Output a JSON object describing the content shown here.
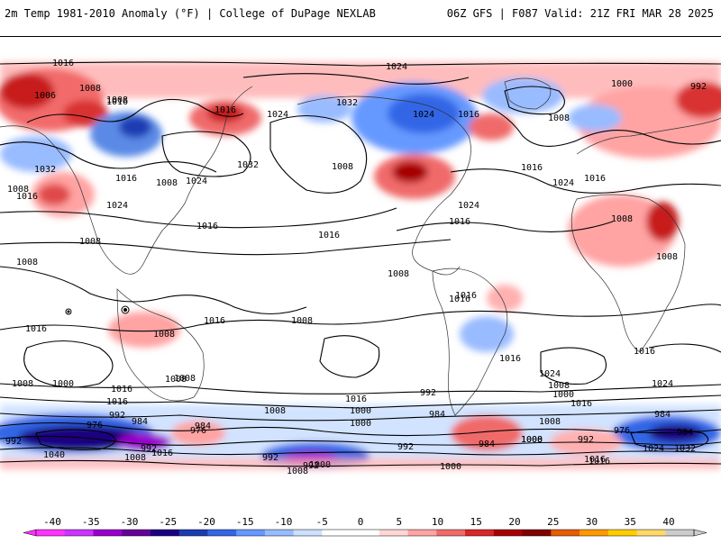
{
  "header": {
    "title_left": "2m Temp 1981-2010 Anomaly (°F) | College of DuPage NEXLAB",
    "title_right": "06Z GFS | F087 Valid: 21Z FRI MAR 28 2025"
  },
  "colorbar": {
    "ticks": [
      "-40",
      "-35",
      "-30",
      "-25",
      "-20",
      "-15",
      "-10",
      "-5",
      "0",
      "5",
      "10",
      "15",
      "20",
      "25",
      "30",
      "35",
      "40"
    ],
    "colors": [
      "#ff33ff",
      "#cc33ff",
      "#9900cc",
      "#660099",
      "#1a0080",
      "#1a3cb3",
      "#3366e6",
      "#6699ff",
      "#99bbff",
      "#cce0ff",
      "#ffffff",
      "#ffffff",
      "#ffd6d6",
      "#ffa3a3",
      "#f06a6a",
      "#d92626",
      "#a80000",
      "#800000",
      "#e65c00",
      "#ff9900",
      "#ffcc00",
      "#ffd966",
      "#cccccc"
    ]
  },
  "isobars": [
    {
      "text": "1016"
    },
    {
      "text": "1024"
    },
    {
      "text": "1008"
    },
    {
      "text": "992"
    },
    {
      "text": "1006"
    },
    {
      "text": "1016"
    },
    {
      "text": "1008"
    },
    {
      "text": "1016"
    },
    {
      "text": "1024"
    },
    {
      "text": "1032"
    },
    {
      "text": "1016"
    },
    {
      "text": "1024"
    },
    {
      "text": "1008"
    },
    {
      "text": "1000"
    },
    {
      "text": "1008"
    },
    {
      "text": "1032"
    },
    {
      "text": "1016"
    },
    {
      "text": "1008"
    },
    {
      "text": "1008"
    },
    {
      "text": "1024"
    },
    {
      "text": "1016"
    },
    {
      "text": "1024"
    },
    {
      "text": "1032"
    },
    {
      "text": "1016"
    },
    {
      "text": "1024"
    },
    {
      "text": "1016"
    },
    {
      "text": "1008"
    },
    {
      "text": "1016"
    },
    {
      "text": "1024"
    },
    {
      "text": "1008"
    },
    {
      "text": "1016"
    },
    {
      "text": "1016"
    },
    {
      "text": "1008"
    },
    {
      "text": "1008"
    },
    {
      "text": "1008"
    },
    {
      "text": "1016"
    },
    {
      "text": "1016"
    },
    {
      "text": "1008"
    },
    {
      "text": "1016"
    },
    {
      "text": "1016"
    },
    {
      "text": "1008"
    },
    {
      "text": "1008"
    },
    {
      "text": "1016"
    },
    {
      "text": "1024"
    },
    {
      "text": "1016"
    },
    {
      "text": "1008"
    },
    {
      "text": "1000"
    },
    {
      "text": "1008"
    },
    {
      "text": "1016"
    },
    {
      "text": "1008"
    },
    {
      "text": "1024"
    },
    {
      "text": "1008"
    },
    {
      "text": "1000"
    },
    {
      "text": "992"
    },
    {
      "text": "984"
    },
    {
      "text": "1016"
    },
    {
      "text": "1000"
    },
    {
      "text": "1016"
    },
    {
      "text": "1000"
    },
    {
      "text": "984"
    },
    {
      "text": "992"
    },
    {
      "text": "984"
    },
    {
      "text": "976"
    },
    {
      "text": "992"
    },
    {
      "text": "992"
    },
    {
      "text": "1040"
    },
    {
      "text": "1008"
    },
    {
      "text": "1016"
    },
    {
      "text": "976"
    },
    {
      "text": "984"
    },
    {
      "text": "992"
    },
    {
      "text": "1000"
    },
    {
      "text": "992"
    },
    {
      "text": "984"
    },
    {
      "text": "1008"
    },
    {
      "text": "1000"
    },
    {
      "text": "1016"
    },
    {
      "text": "992"
    },
    {
      "text": "1000"
    },
    {
      "text": "1008"
    },
    {
      "text": "1016"
    },
    {
      "text": "1024"
    },
    {
      "text": "1032"
    },
    {
      "text": "984"
    },
    {
      "text": "976"
    },
    {
      "text": "992"
    },
    {
      "text": "1008"
    },
    {
      "text": "1016"
    }
  ]
}
